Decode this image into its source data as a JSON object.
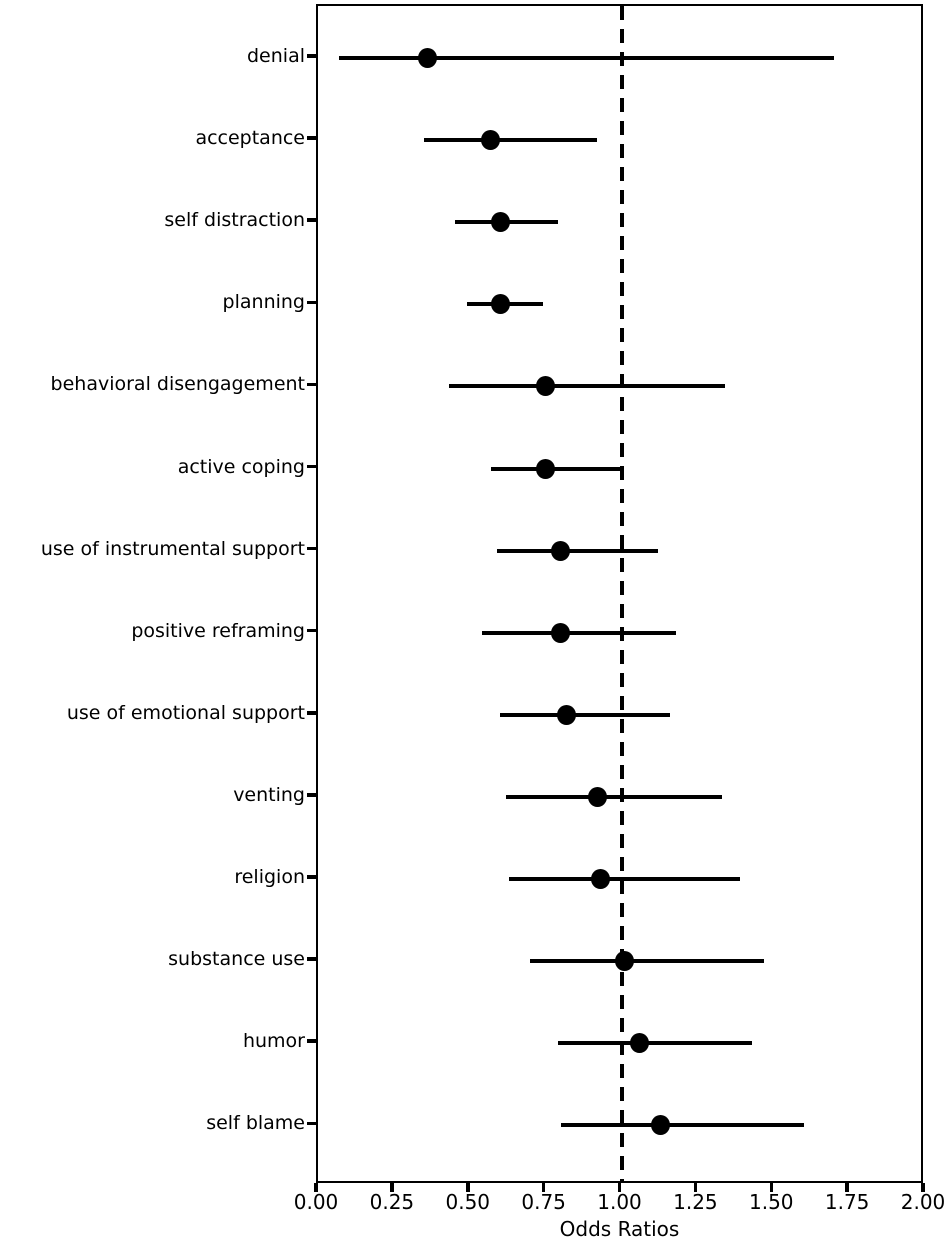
{
  "figure": {
    "background_color": "#ffffff",
    "foreground_color": "#000000"
  },
  "chart_data": {
    "type": "scatter",
    "subtype": "forest_plot",
    "title": "",
    "xlabel": "Odds Ratios",
    "ylabel": "",
    "xlim": [
      0.0,
      2.0
    ],
    "x_tick_values": [
      0.0,
      0.25,
      0.5,
      0.75,
      1.0,
      1.25,
      1.5,
      1.75,
      2.0
    ],
    "x_tick_labels": [
      "0.00",
      "0.25",
      "0.50",
      "0.75",
      "1.00",
      "1.25",
      "1.50",
      "1.75",
      "2.00"
    ],
    "grid": false,
    "legend": "none",
    "reference_line_x": 1.0,
    "reference_line_style": "dashed",
    "marker": "filled-circle",
    "marker_color": "#000000",
    "ci_line_color": "#000000",
    "categories": [
      "denial",
      "acceptance",
      "self distraction",
      "planning",
      "behavioral disengagement",
      "active coping",
      "use of instrumental support",
      "positive reframing",
      "use of emotional support",
      "venting",
      "religion",
      "substance use",
      "humor",
      "self blame"
    ],
    "series": [
      {
        "name": "odds_ratio",
        "values": [
          0.36,
          0.57,
          0.6,
          0.6,
          0.75,
          0.75,
          0.8,
          0.8,
          0.82,
          0.92,
          0.93,
          1.01,
          1.06,
          1.13
        ]
      },
      {
        "name": "ci_lower",
        "values": [
          0.07,
          0.35,
          0.45,
          0.49,
          0.43,
          0.57,
          0.59,
          0.54,
          0.6,
          0.62,
          0.63,
          0.7,
          0.79,
          0.8
        ]
      },
      {
        "name": "ci_upper",
        "values": [
          1.7,
          0.92,
          0.79,
          0.74,
          1.34,
          1.0,
          1.12,
          1.18,
          1.16,
          1.33,
          1.39,
          1.47,
          1.43,
          1.6
        ]
      }
    ]
  }
}
